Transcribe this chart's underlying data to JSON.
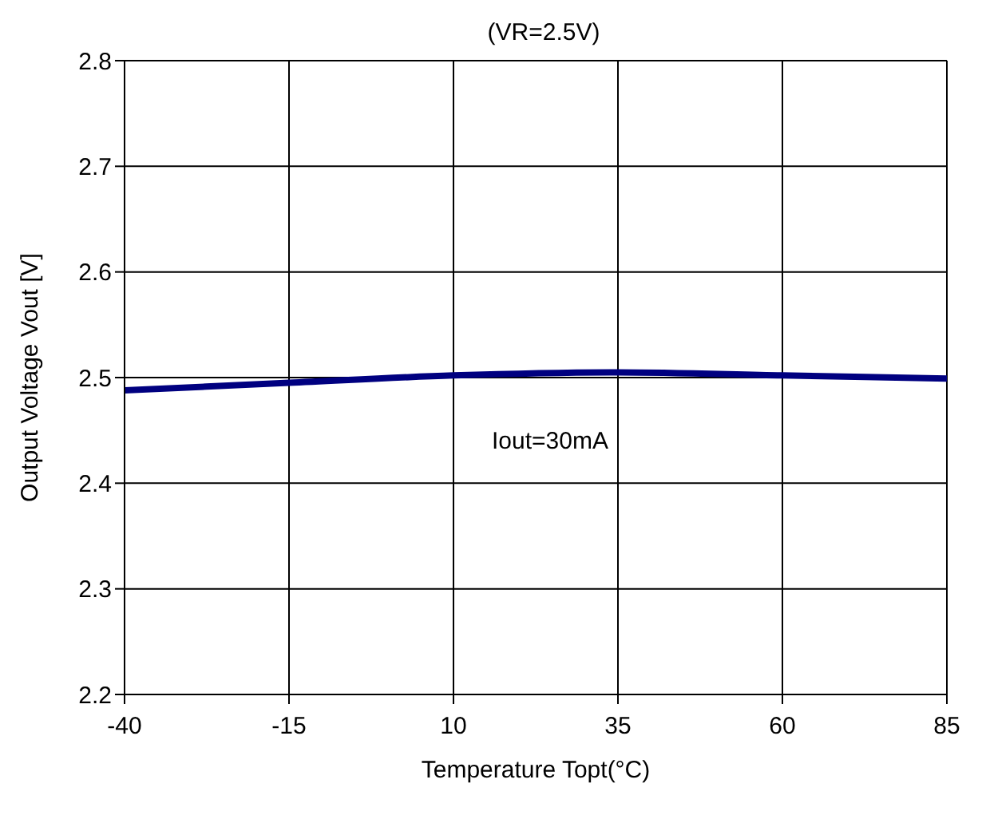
{
  "chart_data": {
    "type": "line",
    "title": "(VR=2.5V)",
    "xlabel": "Temperature Topt(°C)",
    "ylabel": "Output Voltage Vout [V]",
    "x": [
      -40,
      -15,
      10,
      35,
      60,
      85
    ],
    "series": [
      {
        "color": "#000080",
        "values": [
          2.488,
          2.495,
          2.502,
          2.505,
          2.502,
          2.499
        ]
      }
    ],
    "xlim": [
      -40,
      85
    ],
    "xticks": [
      -40,
      -15,
      10,
      35,
      60,
      85
    ],
    "ylim": [
      2.2,
      2.8
    ],
    "yticks": [
      {
        "value": 2.2,
        "label": "2.2"
      },
      {
        "value": 2.3,
        "label": "2.3"
      },
      {
        "value": 2.4,
        "label": "2.4"
      },
      {
        "value": 2.5,
        "label": "2.5"
      },
      {
        "value": 2.6,
        "label": "2.6"
      },
      {
        "value": 2.7,
        "label": "2.7"
      },
      {
        "value": 2.8,
        "label": "2.8"
      }
    ],
    "grid": true,
    "marker": "none",
    "line_style": "solid",
    "annotations": [
      "Iout=30mA"
    ]
  }
}
